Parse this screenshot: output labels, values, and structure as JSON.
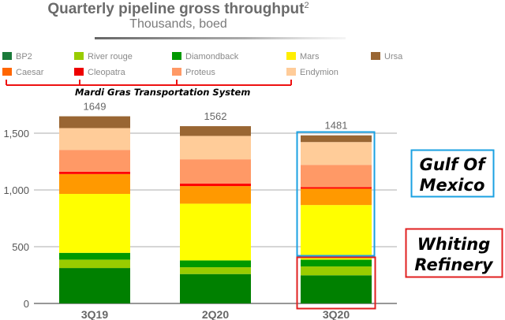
{
  "chart_data": {
    "type": "bar",
    "stacked": true,
    "title": "Quarterly pipeline gross throughput",
    "title_superscript": "2",
    "subtitle": "Thousands, boed",
    "xlabel": "",
    "ylabel": "",
    "ylim": [
      0,
      1700
    ],
    "yticks": [
      0,
      500,
      1000,
      1500
    ],
    "ytick_labels": [
      "0",
      "500",
      "1,000",
      "1,500"
    ],
    "grid": true,
    "legend_position": "top",
    "categories": [
      "3Q19",
      "2Q20",
      "3Q20"
    ],
    "totals": [
      "1649",
      "1562",
      "1481"
    ],
    "series": [
      {
        "name": "BP2",
        "color": "#008000",
        "values": [
          312,
          259,
          248
        ]
      },
      {
        "name": "River rouge",
        "color": "#99cc00",
        "values": [
          74,
          60,
          78
        ]
      },
      {
        "name": "Diamondback",
        "color": "#009900",
        "values": [
          60,
          60,
          60
        ]
      },
      {
        "name": "Mars",
        "color": "#ffff00",
        "values": [
          519,
          500,
          481
        ]
      },
      {
        "name": "Caesar",
        "color": "#ff9900",
        "values": [
          175,
          155,
          144
        ]
      },
      {
        "name": "Cleopatra",
        "color": "#ff0000",
        "values": [
          21,
          23,
          14
        ]
      },
      {
        "name": "Proteus",
        "color": "#ff9966",
        "values": [
          192,
          213,
          196
        ]
      },
      {
        "name": "Endymion",
        "color": "#ffcc99",
        "values": [
          192,
          206,
          201
        ]
      },
      {
        "name": "Ursa",
        "color": "#996633",
        "values": [
          104,
          86,
          59
        ]
      }
    ],
    "legend_order": [
      "BP2",
      "River rouge",
      "Diamondback",
      "Mars",
      "Ursa",
      "Caesar",
      "Cleopatra",
      "Proteus",
      "Endymion"
    ],
    "legend_colors": {
      "BP2": "#1a7a3a",
      "River rouge": "#99cc00",
      "Diamondback": "#009900",
      "Mars": "#ffee00",
      "Ursa": "#996633",
      "Caesar": "#ff6600",
      "Cleopatra": "#ee0000",
      "Proteus": "#ff9966",
      "Endymion": "#ffcc99"
    },
    "annotations": {
      "bracket_label": "Mardi Gras Transportation System",
      "gulf_label_line1": "Gulf Of",
      "gulf_label_line2": "Mexico",
      "gulf_color": "#1ba1e2",
      "whiting_label_line1": "Whiting",
      "whiting_label_line2": "Refinery",
      "whiting_color": "#e02020"
    }
  }
}
